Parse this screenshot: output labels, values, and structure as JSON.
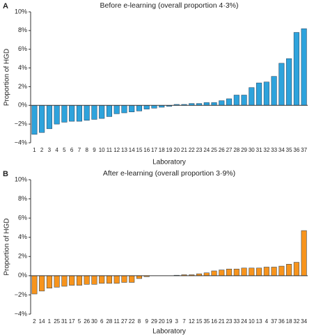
{
  "chart_data": [
    {
      "type": "bar",
      "panel": "A",
      "title": "Before e-learning (overall proportion 4·3%)",
      "xlabel": "Laboratory",
      "ylabel": "Proportion of HGD",
      "color": "#2ea3dc",
      "categories": [
        "1",
        "2",
        "3",
        "4",
        "5",
        "6",
        "7",
        "8",
        "9",
        "10",
        "11",
        "12",
        "13",
        "14",
        "15",
        "16",
        "17",
        "18",
        "19",
        "20",
        "21",
        "22",
        "23",
        "24",
        "25",
        "26",
        "27",
        "28",
        "29",
        "30",
        "31",
        "32",
        "33",
        "34",
        "35",
        "36",
        "37"
      ],
      "values": [
        -3.1,
        -2.9,
        -2.5,
        -2.0,
        -1.8,
        -1.7,
        -1.7,
        -1.6,
        -1.5,
        -1.4,
        -1.2,
        -0.9,
        -0.8,
        -0.7,
        -0.6,
        -0.4,
        -0.3,
        -0.2,
        -0.1,
        0.1,
        0.1,
        0.2,
        0.2,
        0.3,
        0.3,
        0.5,
        0.7,
        1.1,
        1.1,
        1.9,
        2.4,
        2.5,
        3.1,
        4.5,
        5.0,
        7.8,
        8.2
      ],
      "ylim": [
        -4,
        10
      ],
      "yticks": [
        {
          "value": -4,
          "label": "−4%"
        },
        {
          "value": -2,
          "label": "−2%"
        },
        {
          "value": 0,
          "label": "0%"
        },
        {
          "value": 2,
          "label": "2%"
        },
        {
          "value": 4,
          "label": "4%"
        },
        {
          "value": 6,
          "label": "6%"
        },
        {
          "value": 8,
          "label": "8%"
        },
        {
          "value": 10,
          "label": "10%"
        }
      ]
    },
    {
      "type": "bar",
      "panel": "B",
      "title": "After e-learning (overall proportion 3·9%)",
      "xlabel": "Laboratory",
      "ylabel": "Proportion of HGD",
      "color": "#f7941d",
      "categories": [
        "2",
        "14",
        "1",
        "25",
        "31",
        "17",
        "5",
        "26",
        "30",
        "6",
        "28",
        "11",
        "27",
        "22",
        "8",
        "9",
        "29",
        "20",
        "19",
        "3",
        "7",
        "12",
        "15",
        "35",
        "16",
        "21",
        "23",
        "33",
        "24",
        "10",
        "13",
        "4",
        "37",
        "36",
        "18",
        "32",
        "34"
      ],
      "values": [
        -1.9,
        -1.6,
        -1.3,
        -1.2,
        -1.1,
        -1.0,
        -1.0,
        -0.9,
        -0.9,
        -0.8,
        -0.8,
        -0.8,
        -0.7,
        -0.7,
        -0.3,
        -0.1,
        0,
        0,
        0,
        0.05,
        0.1,
        0.1,
        0.2,
        0.3,
        0.5,
        0.6,
        0.7,
        0.7,
        0.8,
        0.8,
        0.8,
        0.9,
        0.9,
        1.0,
        1.2,
        1.4,
        4.7
      ],
      "ylim": [
        -4,
        10
      ],
      "yticks": [
        {
          "value": -4,
          "label": "−4%"
        },
        {
          "value": -2,
          "label": "−2%"
        },
        {
          "value": 0,
          "label": "0%"
        },
        {
          "value": 2,
          "label": "2%"
        },
        {
          "value": 4,
          "label": "4%"
        },
        {
          "value": 6,
          "label": "6%"
        },
        {
          "value": 8,
          "label": "8%"
        },
        {
          "value": 10,
          "label": "10%"
        }
      ]
    }
  ]
}
